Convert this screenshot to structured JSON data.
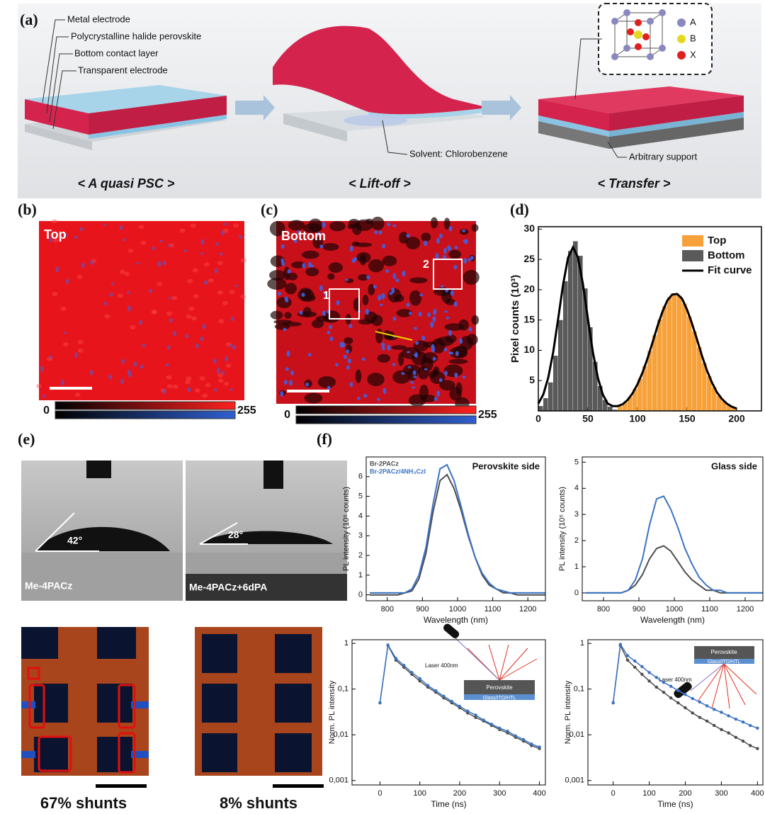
{
  "labels": {
    "a": "(a)",
    "b": "(b)",
    "c": "(c)",
    "d": "(d)",
    "e": "(e)",
    "f": "(f)"
  },
  "schematic": {
    "layers": [
      "Metal electrode",
      "Polycrystalline halide perovskite",
      "Bottom contact layer",
      "Transparent electrode"
    ],
    "solvent": "Solvent: Chlorobenzene",
    "support": "Arbitrary support",
    "crystal": [
      "A",
      "B",
      "X"
    ],
    "steps": [
      "< A quasi PSC >",
      "< Lift-off >",
      "< Transfer >"
    ]
  },
  "maps": [
    {
      "label": "Top",
      "scale_min": 0,
      "scale_max": 255
    },
    {
      "label": "Bottom",
      "boxes": [
        "1",
        "2"
      ],
      "scale_min": 0,
      "scale_max": 255
    }
  ],
  "contact_angle": [
    {
      "angle": "42°",
      "sample": "Me-4PACz"
    },
    {
      "angle": "28°",
      "sample": "Me-4PACz+6dPA"
    }
  ],
  "shunts": [
    "67% shunts",
    "8% shunts"
  ],
  "chart_data": [
    {
      "type": "histogram",
      "ylabel": "Pixel counts (10³)",
      "bins": [
        0,
        5,
        10,
        15,
        20,
        25,
        30,
        35,
        40,
        45,
        50,
        55,
        60,
        65,
        70,
        75,
        80,
        85,
        90,
        95,
        100,
        105,
        110,
        115,
        120,
        125,
        130,
        135,
        140,
        145,
        150,
        155,
        160,
        165,
        170,
        175,
        180,
        185,
        190,
        195,
        200
      ],
      "series": [
        {
          "name": "Top",
          "color": "#f7a13b",
          "values": [
            0,
            0,
            0,
            0,
            0,
            0,
            0,
            0,
            0,
            0,
            0,
            0,
            0,
            0,
            0,
            0,
            0.8,
            1.4,
            2.3,
            3.6,
            5.3,
            7.4,
            9.9,
            12.5,
            15.1,
            17.3,
            18.8,
            19.4,
            19.0,
            17.7,
            15.6,
            13.1,
            10.5,
            7.9,
            5.7,
            3.9,
            2.5,
            1.6,
            0.9,
            0.5
          ]
        },
        {
          "name": "Bottom",
          "color": "#5a5a5a",
          "values": [
            0.8,
            2.1,
            4.7,
            9.1,
            15.0,
            21.4,
            26.4,
            28.0,
            25.6,
            20.2,
            13.8,
            8.1,
            4.1,
            1.8,
            0.7,
            0.2,
            0,
            0,
            0,
            0,
            0,
            0,
            0,
            0,
            0,
            0,
            0,
            0,
            0,
            0,
            0,
            0,
            0,
            0,
            0,
            0,
            0,
            0,
            0,
            0
          ]
        },
        {
          "name": "Fit curve",
          "color": "#000000",
          "type": "line",
          "x": [
            0,
            5,
            10,
            15,
            20,
            25,
            30,
            35,
            40,
            45,
            50,
            55,
            60,
            65,
            70,
            75,
            80,
            85,
            90,
            95,
            100,
            105,
            110,
            115,
            120,
            125,
            130,
            135,
            140,
            145,
            150,
            155,
            160,
            165,
            170,
            175,
            180,
            185,
            190,
            195,
            200
          ],
          "values": [
            1.2,
            2.7,
            5.5,
            9.7,
            15.2,
            20.9,
            25.3,
            27.0,
            25.3,
            20.9,
            15.2,
            9.7,
            5.5,
            2.7,
            1.2,
            0.8,
            0.8,
            1.1,
            1.8,
            2.9,
            4.4,
            6.3,
            8.6,
            11.2,
            13.9,
            16.3,
            18.2,
            19.2,
            19.3,
            18.5,
            16.7,
            14.4,
            11.8,
            9.1,
            6.7,
            4.7,
            3.1,
            2.0,
            1.2,
            0.7,
            0.4
          ]
        }
      ],
      "xlim": [
        0,
        225
      ],
      "ylim": [
        0,
        30.4
      ],
      "xticks": [
        0,
        50,
        100,
        150,
        200
      ],
      "yticks": [
        5,
        10,
        15,
        20,
        25,
        30
      ],
      "legend": "upper right"
    },
    {
      "type": "line",
      "title": "Perovskite side",
      "xlabel": "Wavelength (nm)",
      "ylabel": "PL intensity (10⁵ counts)",
      "x": [
        750,
        770,
        790,
        810,
        830,
        850,
        870,
        890,
        910,
        930,
        950,
        970,
        990,
        1010,
        1030,
        1050,
        1070,
        1090,
        1110,
        1130,
        1150,
        1170,
        1190,
        1210,
        1230,
        1250
      ],
      "series": [
        {
          "name": "Br-2PACz",
          "color": "#4d4d4d",
          "values": [
            0,
            0,
            0,
            0,
            0,
            0.1,
            0.2,
            0.8,
            2.1,
            4.2,
            5.8,
            6.1,
            5.4,
            4.3,
            3.0,
            1.9,
            1.0,
            0.5,
            0.3,
            0.1,
            0.1,
            0,
            0,
            0,
            0,
            0
          ]
        },
        {
          "name": "Br-2PACz/4NH₃CzI",
          "color": "#3b73c4",
          "values": [
            0.1,
            0.1,
            0.1,
            0.1,
            0.1,
            0.1,
            0.3,
            1.0,
            2.4,
            4.6,
            6.4,
            6.6,
            5.8,
            4.5,
            3.1,
            1.9,
            1.1,
            0.6,
            0.3,
            0.2,
            0.1,
            0.1,
            0.1,
            0.1,
            0.1,
            0.1
          ]
        }
      ],
      "xlim": [
        740,
        1250
      ],
      "ylim": [
        -0.3,
        7
      ],
      "xticks": [
        800,
        900,
        1000,
        1100,
        1200
      ],
      "yticks": [
        0,
        1,
        2,
        3,
        4,
        5,
        6
      ],
      "legend": "upper left"
    },
    {
      "type": "line",
      "title": "Glass side",
      "xlabel": "Wavelength (nm)",
      "ylabel": "PL intensity (10⁵ counts)",
      "x": [
        750,
        770,
        790,
        810,
        830,
        850,
        870,
        890,
        910,
        930,
        950,
        970,
        990,
        1010,
        1030,
        1050,
        1070,
        1090,
        1110,
        1130,
        1150,
        1170,
        1190,
        1210,
        1230,
        1250
      ],
      "series": [
        {
          "color": "#4d4d4d",
          "values": [
            0,
            0,
            0,
            0,
            0,
            0,
            0.1,
            0.3,
            0.7,
            1.3,
            1.7,
            1.8,
            1.6,
            1.2,
            0.8,
            0.5,
            0.3,
            0.1,
            0.1,
            0,
            0,
            0,
            0,
            0,
            0,
            0
          ]
        },
        {
          "color": "#3b73c4",
          "values": [
            0,
            0,
            0,
            0,
            0,
            0,
            0.1,
            0.5,
            1.3,
            2.6,
            3.6,
            3.7,
            3.2,
            2.5,
            1.7,
            1.1,
            0.6,
            0.3,
            0.1,
            0.1,
            0,
            0,
            0,
            0,
            0,
            0
          ]
        }
      ],
      "xlim": [
        740,
        1250
      ],
      "ylim": [
        -0.3,
        5.2
      ],
      "xticks": [
        800,
        900,
        1000,
        1100,
        1200
      ],
      "yticks": [
        0,
        1,
        2,
        3,
        4,
        5
      ]
    },
    {
      "type": "scatter",
      "xlabel": "Time (ns)",
      "ylabel": "Norm. PL intensity",
      "log_y": true,
      "x": [
        0,
        20,
        40,
        60,
        80,
        100,
        120,
        140,
        160,
        180,
        200,
        220,
        240,
        260,
        280,
        300,
        320,
        340,
        360,
        380,
        400
      ],
      "series": [
        {
          "color": "#4d4d4d",
          "values": [
            0.05,
            0.9,
            0.43,
            0.3,
            0.21,
            0.15,
            0.11,
            0.085,
            0.064,
            0.05,
            0.039,
            0.03,
            0.024,
            0.02,
            0.016,
            0.013,
            0.011,
            0.0088,
            0.0073,
            0.0058,
            0.005
          ]
        },
        {
          "color": "#3b73c4",
          "values": [
            0.05,
            0.92,
            0.47,
            0.33,
            0.23,
            0.17,
            0.12,
            0.092,
            0.07,
            0.054,
            0.042,
            0.033,
            0.027,
            0.021,
            0.017,
            0.014,
            0.012,
            0.0095,
            0.0079,
            0.0063,
            0.0054
          ]
        }
      ],
      "xlim": [
        -70,
        415
      ],
      "ylim": [
        0.0008,
        1.2
      ],
      "xticks": [
        0,
        100,
        200,
        300,
        400
      ],
      "yticks": [
        {
          "value": 0.001,
          "label": "0,001"
        },
        {
          "value": 0.01,
          "label": "0,01"
        },
        {
          "value": 0.1,
          "label": "0,1"
        },
        1
      ],
      "inset": {
        "laser": "Laser 400nm",
        "layers": [
          "Perovskite",
          "Glass/ITO/HTL"
        ]
      }
    },
    {
      "type": "scatter",
      "xlabel": "Time (ns)",
      "ylabel": "Norm. PL intensity",
      "log_y": true,
      "x": [
        0,
        20,
        40,
        60,
        80,
        100,
        120,
        140,
        160,
        180,
        200,
        220,
        240,
        260,
        280,
        300,
        320,
        340,
        360,
        380,
        400
      ],
      "series": [
        {
          "color": "#4d4d4d",
          "values": [
            0.05,
            0.9,
            0.43,
            0.3,
            0.21,
            0.15,
            0.11,
            0.085,
            0.064,
            0.05,
            0.039,
            0.03,
            0.024,
            0.02,
            0.016,
            0.013,
            0.011,
            0.0088,
            0.0073,
            0.0058,
            0.005
          ]
        },
        {
          "color": "#3b73c4",
          "values": [
            0.05,
            0.95,
            0.54,
            0.41,
            0.31,
            0.23,
            0.18,
            0.14,
            0.115,
            0.093,
            0.076,
            0.062,
            0.052,
            0.043,
            0.036,
            0.031,
            0.026,
            0.022,
            0.019,
            0.016,
            0.014
          ]
        }
      ],
      "xlim": [
        -70,
        415
      ],
      "ylim": [
        0.0008,
        1.2
      ],
      "xticks": [
        0,
        100,
        200,
        300,
        400
      ],
      "yticks": [
        {
          "value": 0.001,
          "label": "0,001"
        },
        {
          "value": 0.01,
          "label": "0,01"
        },
        {
          "value": 0.1,
          "label": "0,1"
        },
        1
      ],
      "inset": {
        "laser": "Laser 400nm",
        "layers": [
          "Perovskite",
          "Glass/ITO/HTL"
        ]
      }
    }
  ]
}
